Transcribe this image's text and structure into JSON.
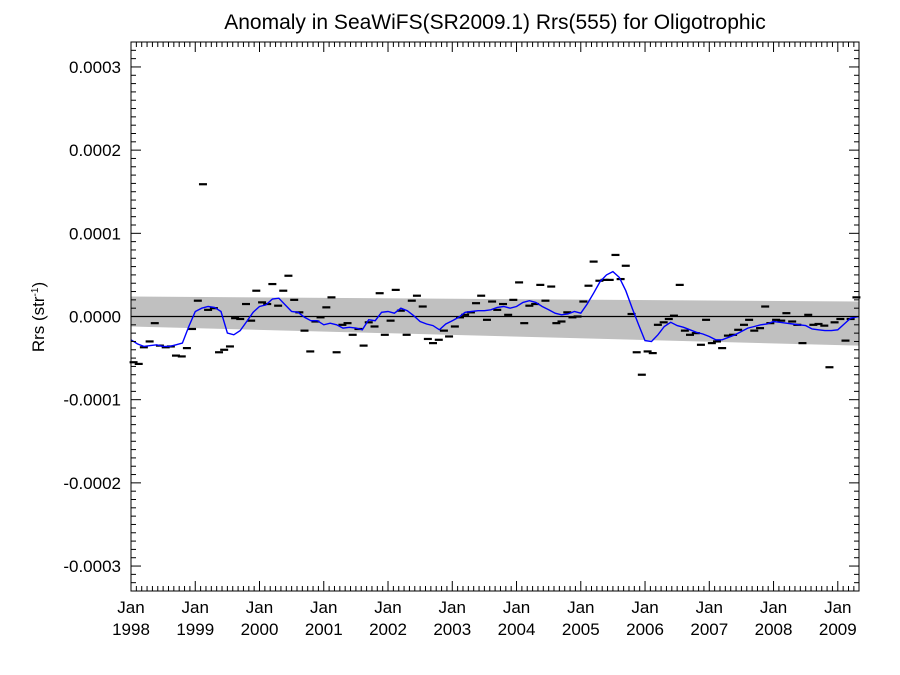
{
  "chart_data": {
    "type": "scatter",
    "title": "Anomaly in SeaWiFS(SR2009.1) Rrs(555) for Oligotrophic",
    "ylabel": {
      "main": "Rrs (str",
      "sup": "-1",
      "close": ")"
    },
    "xlabel": "",
    "xlim": [
      1998.0,
      2009.33
    ],
    "ylim": [
      -0.00033,
      0.00033
    ],
    "y_ticks": [
      {
        "value": -0.0003,
        "label": "-0.0003"
      },
      {
        "value": -0.0002,
        "label": "-0.0002"
      },
      {
        "value": -0.0001,
        "label": "-0.0001"
      },
      {
        "value": 0.0,
        "label": "0.0000"
      },
      {
        "value": 0.0001,
        "label": "0.0001"
      },
      {
        "value": 0.0002,
        "label": "0.0002"
      },
      {
        "value": 0.0003,
        "label": "0.0003"
      }
    ],
    "x_ticks": [
      {
        "value": 1998,
        "month": "Jan",
        "year": "1998"
      },
      {
        "value": 1999,
        "month": "Jan",
        "year": "1999"
      },
      {
        "value": 2000,
        "month": "Jan",
        "year": "2000"
      },
      {
        "value": 2001,
        "month": "Jan",
        "year": "2001"
      },
      {
        "value": 2002,
        "month": "Jan",
        "year": "2002"
      },
      {
        "value": 2003,
        "month": "Jan",
        "year": "2003"
      },
      {
        "value": 2004,
        "month": "Jan",
        "year": "2004"
      },
      {
        "value": 2005,
        "month": "Jan",
        "year": "2005"
      },
      {
        "value": 2006,
        "month": "Jan",
        "year": "2006"
      },
      {
        "value": 2007,
        "month": "Jan",
        "year": "2007"
      },
      {
        "value": 2008,
        "month": "Jan",
        "year": "2008"
      },
      {
        "value": 2009,
        "month": "Jan",
        "year": "2009"
      }
    ],
    "grid": false,
    "legend": "none",
    "colors": {
      "points": "#000000",
      "smooth": "#0000ff",
      "band": "#c0c0c0",
      "zero": "#000000"
    },
    "band": {
      "x": [
        1998.0,
        2009.33
      ],
      "upper": [
        2.4e-05,
        1.8e-05
      ],
      "lower": [
        -1.2e-05,
        -3.5e-05
      ]
    },
    "zero_line": 0.0,
    "points": [
      [
        1998.04,
        -5.5e-05
      ],
      [
        1998.12,
        -5.7e-05
      ],
      [
        1998.2,
        -3.7e-05
      ],
      [
        1998.29,
        -3e-05
      ],
      [
        1998.37,
        -8e-06
      ],
      [
        1998.45,
        -3.5e-05
      ],
      [
        1998.54,
        -3.7e-05
      ],
      [
        1998.62,
        -3.6e-05
      ],
      [
        1998.7,
        -4.7e-05
      ],
      [
        1998.79,
        -4.8e-05
      ],
      [
        1998.87,
        -3.8e-05
      ],
      [
        1998.95,
        -1.5e-05
      ],
      [
        1999.04,
        1.9e-05
      ],
      [
        1999.12,
        0.000159
      ],
      [
        1999.2,
        8e-06
      ],
      [
        1999.29,
        1e-05
      ],
      [
        1999.37,
        -4.3e-05
      ],
      [
        1999.45,
        -4e-05
      ],
      [
        1999.54,
        -3.6e-05
      ],
      [
        1999.62,
        -2e-06
      ],
      [
        1999.7,
        -3e-06
      ],
      [
        1999.79,
        1.5e-05
      ],
      [
        1999.87,
        -5e-06
      ],
      [
        1999.95,
        3.1e-05
      ],
      [
        2000.04,
        1.7e-05
      ],
      [
        2000.12,
        1.5e-05
      ],
      [
        2000.2,
        3.9e-05
      ],
      [
        2000.29,
        1.3e-05
      ],
      [
        2000.37,
        3.1e-05
      ],
      [
        2000.45,
        4.9e-05
      ],
      [
        2000.54,
        2e-05
      ],
      [
        2000.62,
        5e-06
      ],
      [
        2000.7,
        -1.7e-05
      ],
      [
        2000.79,
        -4.2e-05
      ],
      [
        2000.87,
        -6e-06
      ],
      [
        2000.95,
        -1e-06
      ],
      [
        2001.04,
        1.1e-05
      ],
      [
        2001.12,
        2.3e-05
      ],
      [
        2001.2,
        -4.3e-05
      ],
      [
        2001.29,
        -1e-05
      ],
      [
        2001.37,
        -8e-06
      ],
      [
        2001.45,
        -2.2e-05
      ],
      [
        2001.54,
        -1.5e-05
      ],
      [
        2001.62,
        -3.5e-05
      ],
      [
        2001.7,
        -7e-06
      ],
      [
        2001.79,
        -1.2e-05
      ],
      [
        2001.87,
        2.8e-05
      ],
      [
        2001.95,
        -2.2e-05
      ],
      [
        2002.04,
        -5e-06
      ],
      [
        2002.12,
        3.2e-05
      ],
      [
        2002.2,
        7e-06
      ],
      [
        2002.29,
        -2.2e-05
      ],
      [
        2002.37,
        1.9e-05
      ],
      [
        2002.45,
        2.5e-05
      ],
      [
        2002.54,
        1.2e-05
      ],
      [
        2002.62,
        -2.7e-05
      ],
      [
        2002.7,
        -3.2e-05
      ],
      [
        2002.79,
        -2.8e-05
      ],
      [
        2002.87,
        -1.7e-05
      ],
      [
        2002.95,
        -2.4e-05
      ],
      [
        2003.04,
        -1.2e-05
      ],
      [
        2003.12,
        -1e-06
      ],
      [
        2003.2,
        2e-06
      ],
      [
        2003.29,
        5e-06
      ],
      [
        2003.37,
        1.6e-05
      ],
      [
        2003.45,
        2.5e-05
      ],
      [
        2003.54,
        -4e-06
      ],
      [
        2003.62,
        1.8e-05
      ],
      [
        2003.7,
        8e-06
      ],
      [
        2003.79,
        1.5e-05
      ],
      [
        2003.87,
        2e-06
      ],
      [
        2003.95,
        2e-05
      ],
      [
        2004.04,
        4.1e-05
      ],
      [
        2004.12,
        -8e-06
      ],
      [
        2004.2,
        1.3e-05
      ],
      [
        2004.29,
        1.5e-05
      ],
      [
        2004.37,
        3.8e-05
      ],
      [
        2004.45,
        1.9e-05
      ],
      [
        2004.54,
        3.6e-05
      ],
      [
        2004.62,
        -8e-06
      ],
      [
        2004.7,
        -6e-06
      ],
      [
        2004.79,
        5e-06
      ],
      [
        2004.87,
        -1e-06
      ],
      [
        2004.95,
        0.0
      ],
      [
        2005.04,
        1.8e-05
      ],
      [
        2005.12,
        3.7e-05
      ],
      [
        2005.2,
        6.6e-05
      ],
      [
        2005.29,
        4.3e-05
      ],
      [
        2005.37,
        4.4e-05
      ],
      [
        2005.45,
        4.4e-05
      ],
      [
        2005.54,
        7.4e-05
      ],
      [
        2005.62,
        4.5e-05
      ],
      [
        2005.7,
        6.1e-05
      ],
      [
        2005.79,
        3e-06
      ],
      [
        2005.87,
        -4.3e-05
      ],
      [
        2005.95,
        -7e-05
      ],
      [
        2006.04,
        -4.2e-05
      ],
      [
        2006.12,
        -4.4e-05
      ],
      [
        2006.2,
        -1e-05
      ],
      [
        2006.29,
        -7e-06
      ],
      [
        2006.37,
        -3e-06
      ],
      [
        2006.45,
        1e-06
      ],
      [
        2006.54,
        3.8e-05
      ],
      [
        2006.62,
        -1.7e-05
      ],
      [
        2006.7,
        -2.2e-05
      ],
      [
        2006.79,
        -2e-05
      ],
      [
        2006.87,
        -3.4e-05
      ],
      [
        2006.95,
        -4e-06
      ],
      [
        2007.04,
        -3.2e-05
      ],
      [
        2007.12,
        -3e-05
      ],
      [
        2007.2,
        -3.8e-05
      ],
      [
        2007.29,
        -2.3e-05
      ],
      [
        2007.37,
        -2.2e-05
      ],
      [
        2007.45,
        -1.6e-05
      ],
      [
        2007.54,
        -1e-05
      ],
      [
        2007.62,
        -4e-06
      ],
      [
        2007.7,
        -1.7e-05
      ],
      [
        2007.79,
        -1.4e-05
      ],
      [
        2007.87,
        1.2e-05
      ],
      [
        2007.95,
        -8e-06
      ],
      [
        2008.04,
        -4e-06
      ],
      [
        2008.12,
        -5e-06
      ],
      [
        2008.2,
        4e-06
      ],
      [
        2008.29,
        -6e-06
      ],
      [
        2008.37,
        -1e-05
      ],
      [
        2008.45,
        -3.2e-05
      ],
      [
        2008.54,
        2e-06
      ],
      [
        2008.62,
        -1e-05
      ],
      [
        2008.7,
        -9e-06
      ],
      [
        2008.79,
        -1.1e-05
      ],
      [
        2008.87,
        -6.1e-05
      ],
      [
        2008.95,
        -7e-06
      ],
      [
        2009.04,
        -3e-06
      ],
      [
        2009.12,
        -2.9e-05
      ],
      [
        2009.2,
        -3e-06
      ],
      [
        2009.29,
        2.3e-05
      ]
    ],
    "smooth": {
      "x": [
        1998.0,
        1998.1,
        1998.2,
        1998.3,
        1998.4,
        1998.5,
        1998.6,
        1998.7,
        1998.8,
        1998.9,
        1999.0,
        1999.1,
        1999.2,
        1999.3,
        1999.4,
        1999.5,
        1999.6,
        1999.7,
        1999.8,
        1999.9,
        2000.0,
        2000.1,
        2000.2,
        2000.3,
        2000.4,
        2000.5,
        2000.6,
        2000.7,
        2000.8,
        2000.9,
        2001.0,
        2001.1,
        2001.2,
        2001.3,
        2001.4,
        2001.5,
        2001.6,
        2001.7,
        2001.8,
        2001.9,
        2002.0,
        2002.1,
        2002.2,
        2002.3,
        2002.4,
        2002.5,
        2002.6,
        2002.7,
        2002.8,
        2002.9,
        2003.0,
        2003.1,
        2003.2,
        2003.3,
        2003.4,
        2003.5,
        2003.6,
        2003.7,
        2003.8,
        2003.9,
        2004.0,
        2004.1,
        2004.2,
        2004.3,
        2004.4,
        2004.5,
        2004.6,
        2004.7,
        2004.8,
        2004.9,
        2005.0,
        2005.1,
        2005.2,
        2005.3,
        2005.4,
        2005.5,
        2005.6,
        2005.7,
        2005.8,
        2005.9,
        2006.0,
        2006.1,
        2006.2,
        2006.3,
        2006.4,
        2006.5,
        2006.6,
        2006.7,
        2006.8,
        2006.9,
        2007.0,
        2007.1,
        2007.2,
        2007.3,
        2007.4,
        2007.5,
        2007.6,
        2007.7,
        2007.8,
        2007.9,
        2008.0,
        2008.1,
        2008.2,
        2008.3,
        2008.4,
        2008.5,
        2008.6,
        2008.7,
        2008.8,
        2008.9,
        2009.0,
        2009.1,
        2009.2,
        2009.33
      ],
      "y": [
        -2.8e-05,
        -3.3e-05,
        -3.6e-05,
        -3.5e-05,
        -3.4e-05,
        -3.6e-05,
        -3.6e-05,
        -3.4e-05,
        -3.2e-05,
        -1.2e-05,
        6e-06,
        1e-05,
        1.2e-05,
        1.1e-05,
        6e-06,
        -2e-05,
        -2.2e-05,
        -1.7e-05,
        -6e-06,
        5e-06,
        1.2e-05,
        1.4e-05,
        2.1e-05,
        2.2e-05,
        1.4e-05,
        6e-06,
        5e-06,
        -1e-06,
        -5e-06,
        -5e-06,
        -1e-05,
        -8e-06,
        -1e-05,
        -1.4e-05,
        -1.3e-05,
        -1.4e-05,
        -1.6e-05,
        -4e-06,
        -5e-06,
        5e-06,
        6e-06,
        4e-06,
        1e-05,
        7e-06,
        1e-06,
        -6e-06,
        -9e-06,
        -1.1e-05,
        -1.6e-05,
        -9e-06,
        -5e-06,
        -1e-06,
        5e-06,
        6e-06,
        7e-06,
        7e-06,
        8e-06,
        1.1e-05,
        1.2e-05,
        1e-05,
        1.2e-05,
        1.7e-05,
        1.9e-05,
        1.7e-05,
        1.2e-05,
        8e-06,
        4e-06,
        2e-06,
        3e-06,
        6e-06,
        4e-06,
        1.5e-05,
        2.8e-05,
        4.2e-05,
        5e-05,
        5.4e-05,
        4.7e-05,
        3.1e-05,
        1e-05,
        -1e-05,
        -2.9e-05,
        -3e-05,
        -2.2e-05,
        -1.2e-05,
        -7e-06,
        -1.1e-05,
        -1.3e-05,
        -1.6e-05,
        -1.9e-05,
        -2.1e-05,
        -2.4e-05,
        -2.8e-05,
        -2.8e-05,
        -2.5e-05,
        -2.2e-05,
        -1.8e-05,
        -1.4e-05,
        -1.2e-05,
        -1e-05,
        -9e-06,
        -6e-06,
        -7e-06,
        -8e-06,
        -9e-06,
        -1e-05,
        -1.1e-05,
        -1.5e-05,
        -1.6e-05,
        -1.7e-05,
        -1.7e-05,
        -1.6e-05,
        -9e-06,
        -2e-06,
        0.0
      ]
    }
  }
}
